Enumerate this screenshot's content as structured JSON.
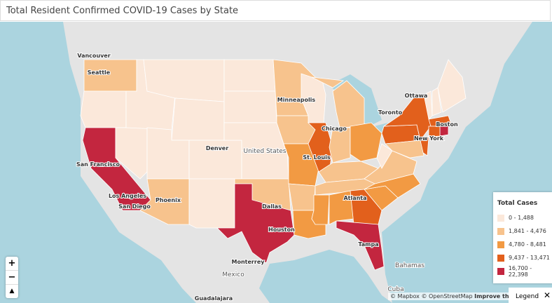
{
  "header": {
    "title": "Total Resident Confirmed COVID-19 Cases by State"
  },
  "map": {
    "labels": [
      "Vancouver",
      "Seattle",
      "Minneapolis",
      "Ottawa",
      "Toronto",
      "Chicago",
      "Boston",
      "New York",
      "Denver",
      "United States",
      "St. Louis",
      "San Francisco",
      "Los Angeles",
      "San Diego",
      "Phoenix",
      "Dallas",
      "Atlanta",
      "Houston",
      "Tampa",
      "Monterrey",
      "Mexico",
      "Bahamas",
      "Cuba",
      "Guadalajara"
    ]
  },
  "legend": {
    "title": "Total Cases",
    "items": [
      {
        "label": "0 - 1,488",
        "color": "#fbe8da"
      },
      {
        "label": "1,841 - 4,476",
        "color": "#f7c38d"
      },
      {
        "label": "4,780 - 8,481",
        "color": "#f29a43"
      },
      {
        "label": "9,437 - 13,471",
        "color": "#e2601c"
      },
      {
        "label": "16,700 - 22,398",
        "color": "#c3263f"
      }
    ]
  },
  "controls": {
    "zoom_in": "+",
    "zoom_out": "−",
    "legend_button": "Legend"
  },
  "attribution": [
    "© Mapbox",
    "© OpenStreetMap",
    "Improve this map"
  ]
}
